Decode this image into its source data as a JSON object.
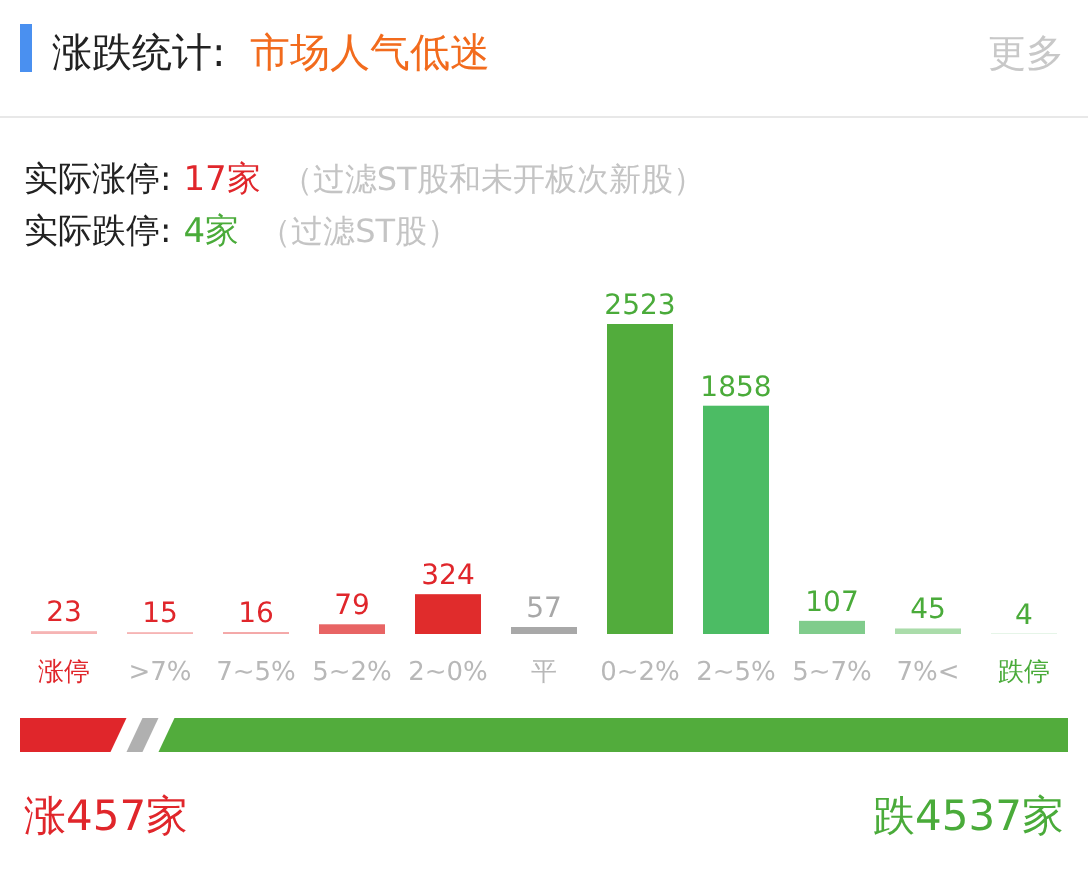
{
  "chart_data": {
    "type": "bar",
    "title": "涨跌统计:",
    "subtitle": "市场人气低迷",
    "annotations": [
      "更多",
      "实际涨停:",
      "17家",
      "（过滤ST股和未开板次新股）",
      "实际跌停:",
      "4家",
      "（过滤ST股）",
      "涨457家",
      "跌4537家"
    ],
    "categories": [
      "涨停",
      ">7%",
      "7~5%",
      "5~2%",
      "2~0%",
      "平",
      "0~2%",
      "2~5%",
      "5~7%",
      "7%<",
      "跌停"
    ],
    "values": [
      23,
      15,
      16,
      79,
      324,
      57,
      2523,
      1858,
      107,
      45,
      4
    ],
    "colors": [
      "#f6b4b4",
      "#f6b4b4",
      "#f4a8a8",
      "#e86464",
      "#e02c2c",
      "#a8a8a8",
      "#52ac3c",
      "#4cbc64",
      "#80cc8c",
      "#aadcaa",
      "#cdebd0"
    ],
    "data_labels": true
  }
}
